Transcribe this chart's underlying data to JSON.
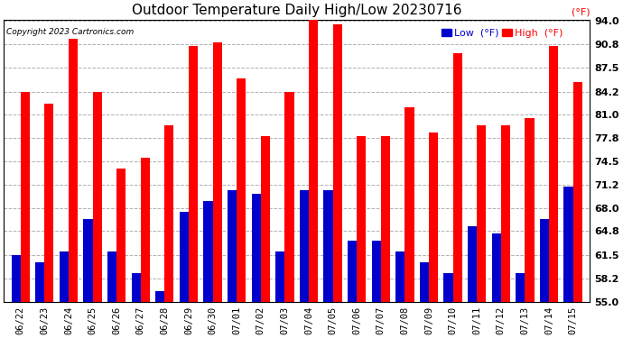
{
  "title": "Outdoor Temperature Daily High/Low 20230716",
  "copyright": "Copyright 2023 Cartronics.com",
  "legend_low": "Low  (°F)",
  "legend_high": "High  (°F)",
  "ylabel": "(°F)",
  "dates": [
    "06/22",
    "06/23",
    "06/24",
    "06/25",
    "06/26",
    "06/27",
    "06/28",
    "06/29",
    "06/30",
    "07/01",
    "07/02",
    "07/03",
    "07/04",
    "07/05",
    "07/06",
    "07/07",
    "07/08",
    "07/09",
    "07/10",
    "07/11",
    "07/12",
    "07/13",
    "07/14",
    "07/15"
  ],
  "highs": [
    84.2,
    82.5,
    91.5,
    84.2,
    73.5,
    75.0,
    79.5,
    90.5,
    91.0,
    86.0,
    78.0,
    84.2,
    94.5,
    93.5,
    78.0,
    78.0,
    82.0,
    78.5,
    89.5,
    79.5,
    79.5,
    80.5,
    90.5,
    85.5
  ],
  "lows": [
    61.5,
    60.5,
    62.0,
    66.5,
    62.0,
    59.0,
    56.5,
    67.5,
    69.0,
    70.5,
    70.0,
    62.0,
    70.5,
    70.5,
    63.5,
    63.5,
    62.0,
    60.5,
    59.0,
    65.5,
    64.5,
    59.0,
    66.5,
    71.0
  ],
  "ylim_min": 55.0,
  "ylim_max": 94.0,
  "yticks": [
    55.0,
    58.2,
    61.5,
    64.8,
    68.0,
    71.2,
    74.5,
    77.8,
    81.0,
    84.2,
    87.5,
    90.8,
    94.0
  ],
  "high_color": "#ff0000",
  "low_color": "#0000cd",
  "background_color": "#ffffff",
  "grid_color": "#b0b0b0",
  "bar_width": 0.38,
  "figwidth": 6.9,
  "figheight": 3.75,
  "dpi": 100
}
